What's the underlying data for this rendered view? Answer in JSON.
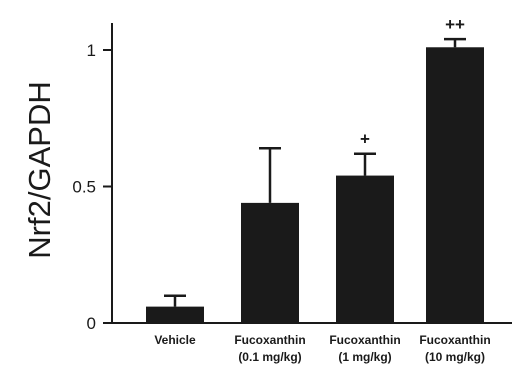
{
  "chart_data": {
    "type": "bar",
    "ylabel": "Nrf2/GAPDH",
    "ylim": [
      0,
      1.1
    ],
    "yticks": [
      {
        "value": 0,
        "label": "0"
      },
      {
        "value": 0.5,
        "label": "0.5"
      },
      {
        "value": 1,
        "label": "1"
      }
    ],
    "categories": [
      {
        "line1": "Vehicle",
        "line2": ""
      },
      {
        "line1": "Fucoxanthin",
        "line2": "(0.1 mg/kg)"
      },
      {
        "line1": "Fucoxanthin",
        "line2": "(1 mg/kg)"
      },
      {
        "line1": "Fucoxanthin",
        "line2": "(10 mg/kg)"
      }
    ],
    "values": [
      0.06,
      0.44,
      0.54,
      1.01
    ],
    "errors": [
      0.04,
      0.2,
      0.08,
      0.03
    ],
    "significance": [
      "",
      "",
      "+",
      "++"
    ],
    "bar_color": "#1a1a1a"
  }
}
